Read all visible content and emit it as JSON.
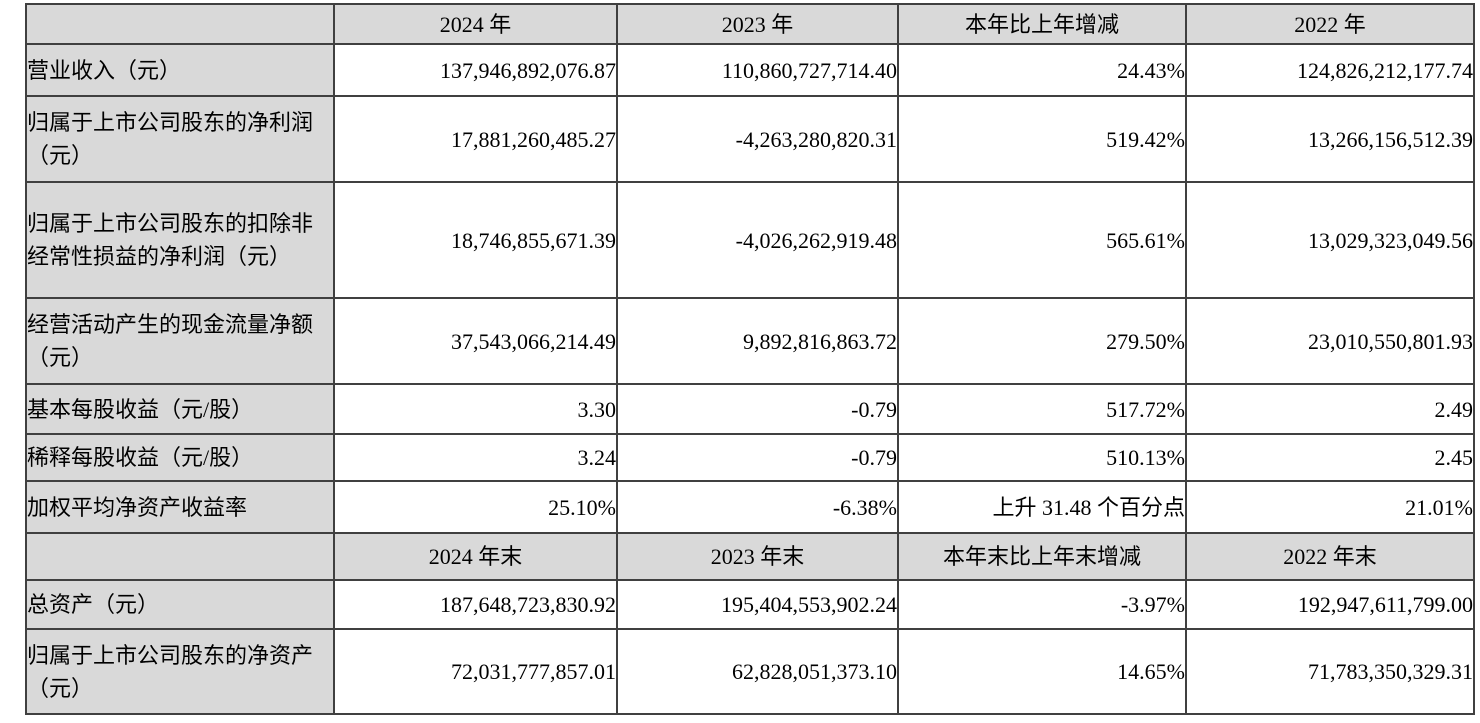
{
  "colors": {
    "shade": "#d9d9d9",
    "border": "#404040",
    "text": "#000000",
    "bg": "#ffffff"
  },
  "table": {
    "rows": [
      {
        "type": "header",
        "cells": [
          "",
          "2024 年",
          "2023 年",
          "本年比上年增减",
          "2022 年"
        ]
      },
      {
        "type": "data",
        "cells": [
          "营业收入（元）",
          "137,946,892,076.87",
          "110,860,727,714.40",
          "24.43%",
          "124,826,212,177.74"
        ]
      },
      {
        "type": "data",
        "cells": [
          "归属于上市公司股东的净利润（元）",
          "17,881,260,485.27",
          "-4,263,280,820.31",
          "519.42%",
          "13,266,156,512.39"
        ]
      },
      {
        "type": "data",
        "cells": [
          "归属于上市公司股东的扣除非经常性损益的净利润（元）",
          "18,746,855,671.39",
          "-4,026,262,919.48",
          "565.61%",
          "13,029,323,049.56"
        ]
      },
      {
        "type": "data",
        "cells": [
          "经营活动产生的现金流量净额（元）",
          "37,543,066,214.49",
          "9,892,816,863.72",
          "279.50%",
          "23,010,550,801.93"
        ]
      },
      {
        "type": "data",
        "cells": [
          "基本每股收益（元/股）",
          "3.30",
          "-0.79",
          "517.72%",
          "2.49"
        ]
      },
      {
        "type": "data",
        "cells": [
          "稀释每股收益（元/股）",
          "3.24",
          "-0.79",
          "510.13%",
          "2.45"
        ]
      },
      {
        "type": "data",
        "cells": [
          "加权平均净资产收益率",
          "25.10%",
          "-6.38%",
          "上升 31.48 个百分点",
          "21.01%"
        ]
      },
      {
        "type": "header",
        "cells": [
          "",
          "2024 年末",
          "2023 年末",
          "本年末比上年末增减",
          "2022 年末"
        ]
      },
      {
        "type": "data",
        "cells": [
          "总资产（元）",
          "187,648,723,830.92",
          "195,404,553,902.24",
          "-3.97%",
          "192,947,611,799.00"
        ]
      },
      {
        "type": "data",
        "cells": [
          "归属于上市公司股东的净资产（元）",
          "72,031,777,857.01",
          "62,828,051,373.10",
          "14.65%",
          "71,783,350,329.31"
        ]
      }
    ]
  }
}
